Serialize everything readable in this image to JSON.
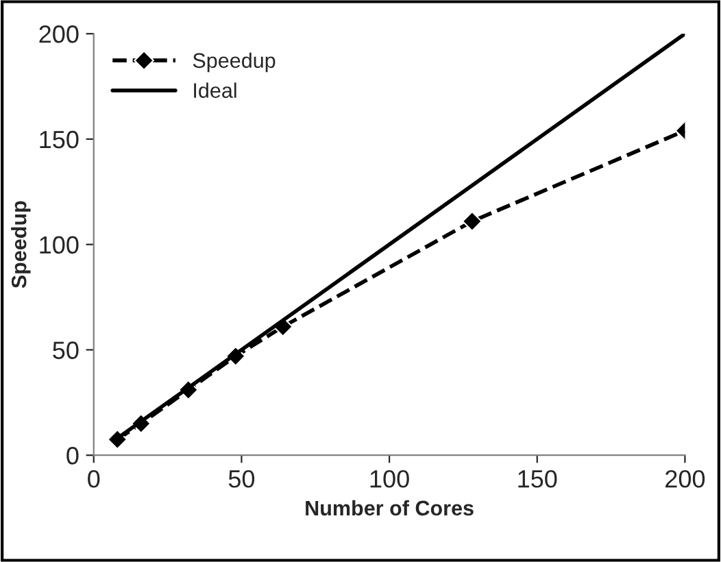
{
  "chart_data": {
    "type": "line",
    "xlabel": "Number of Cores",
    "ylabel": "Speedup",
    "xlim": [
      0,
      200
    ],
    "ylim": [
      0,
      200
    ],
    "xticks": [
      0,
      50,
      100,
      150,
      200
    ],
    "yticks": [
      0,
      50,
      100,
      150,
      200
    ],
    "grid": false,
    "legend": "top left",
    "series": [
      {
        "name": "Speedup",
        "color": "#000000",
        "x": [
          8,
          16,
          32,
          48,
          64,
          128,
          200
        ],
        "values": [
          7.5,
          15,
          31,
          47,
          61,
          111,
          154
        ],
        "marker": "diamond",
        "line_style": "dashed"
      },
      {
        "name": "Ideal",
        "color": "#000000",
        "x": [
          8,
          200
        ],
        "values": [
          8,
          200
        ],
        "marker": "none",
        "line_style": "solid"
      }
    ]
  }
}
